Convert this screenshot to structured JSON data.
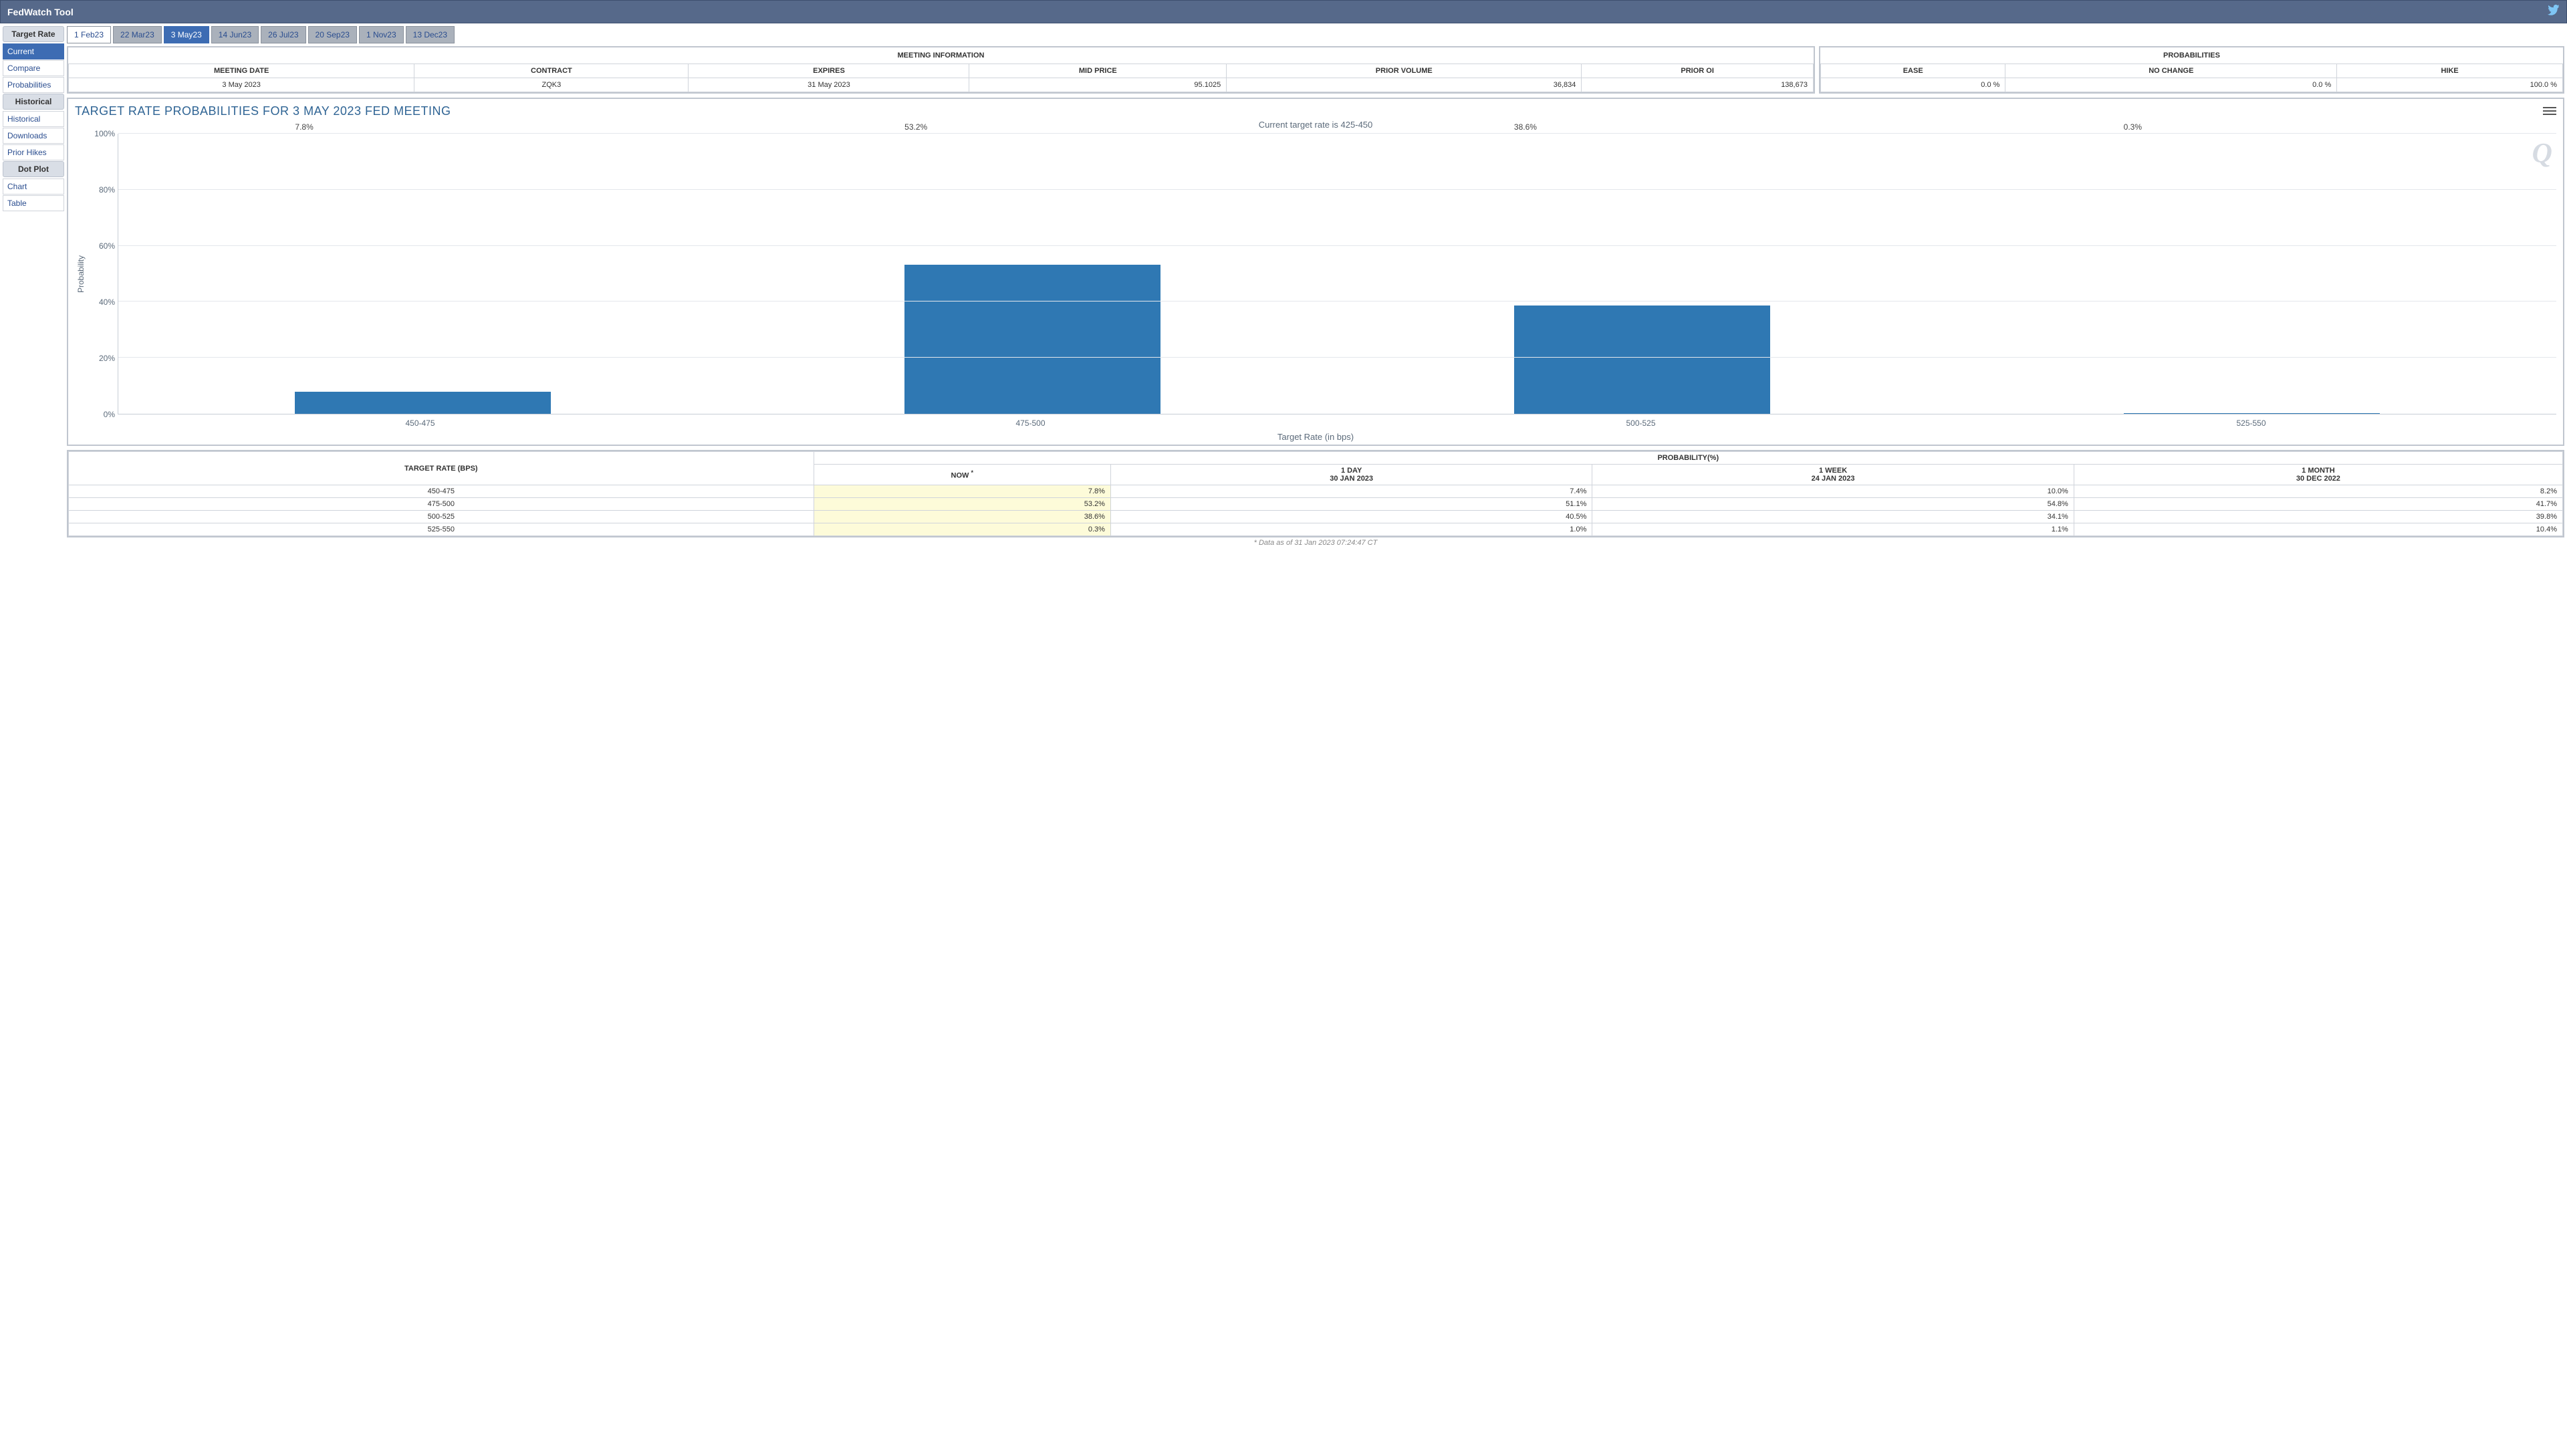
{
  "header": {
    "title": "FedWatch Tool"
  },
  "sidebar": {
    "sections": [
      {
        "title": "Target Rate",
        "items": [
          {
            "label": "Current",
            "active": true
          },
          {
            "label": "Compare",
            "active": false
          },
          {
            "label": "Probabilities",
            "active": false
          }
        ]
      },
      {
        "title": "Historical",
        "items": [
          {
            "label": "Historical",
            "active": false
          },
          {
            "label": "Downloads",
            "active": false
          },
          {
            "label": "Prior Hikes",
            "active": false
          }
        ]
      },
      {
        "title": "Dot Plot",
        "items": [
          {
            "label": "Chart",
            "active": false
          },
          {
            "label": "Table",
            "active": false
          }
        ]
      }
    ]
  },
  "tabs": [
    {
      "label": "1 Feb23",
      "state": "white"
    },
    {
      "label": "22 Mar23",
      "state": "normal"
    },
    {
      "label": "3 May23",
      "state": "active"
    },
    {
      "label": "14 Jun23",
      "state": "normal"
    },
    {
      "label": "26 Jul23",
      "state": "normal"
    },
    {
      "label": "20 Sep23",
      "state": "normal"
    },
    {
      "label": "1 Nov23",
      "state": "normal"
    },
    {
      "label": "13 Dec23",
      "state": "normal"
    }
  ],
  "meeting_info": {
    "title": "MEETING INFORMATION",
    "headers": [
      "MEETING DATE",
      "CONTRACT",
      "EXPIRES",
      "MID PRICE",
      "PRIOR VOLUME",
      "PRIOR OI"
    ],
    "row": [
      "3 May 2023",
      "ZQK3",
      "31 May 2023",
      "95.1025",
      "36,834",
      "138,673"
    ],
    "num_align_from": 3
  },
  "probabilities": {
    "title": "PROBABILITIES",
    "headers": [
      "EASE",
      "NO CHANGE",
      "HIKE"
    ],
    "row": [
      "0.0 %",
      "0.0 %",
      "100.0 %"
    ]
  },
  "chart": {
    "type": "bar",
    "title": "TARGET RATE PROBABILITIES FOR 3 MAY 2023 FED MEETING",
    "subtitle": "Current target rate is 425-450",
    "ylabel": "Probability",
    "xlabel": "Target Rate (in bps)",
    "ymin": 0,
    "ymax": 100,
    "ytick_step": 20,
    "bar_color": "#2f78b3",
    "grid_color": "#e4e7ec",
    "axis_color": "#c7cdd6",
    "text_color": "#5b6a7a",
    "background_color": "#ffffff",
    "watermark": "Q",
    "categories": [
      "450-475",
      "475-500",
      "500-525",
      "525-550"
    ],
    "values": [
      7.8,
      53.2,
      38.6,
      0.3
    ],
    "value_suffix": "%"
  },
  "prob_table": {
    "target_header": "TARGET RATE (BPS)",
    "prob_header": "PROBABILITY(%)",
    "columns": [
      {
        "l1": "NOW",
        "l2": "",
        "star": true,
        "now": true
      },
      {
        "l1": "1 DAY",
        "l2": "30 JAN 2023",
        "star": false,
        "now": false
      },
      {
        "l1": "1 WEEK",
        "l2": "24 JAN 2023",
        "star": false,
        "now": false
      },
      {
        "l1": "1 MONTH",
        "l2": "30 DEC 2022",
        "star": false,
        "now": false
      }
    ],
    "rows": [
      {
        "rate": "450-475",
        "vals": [
          "7.8%",
          "7.4%",
          "10.0%",
          "8.2%"
        ]
      },
      {
        "rate": "475-500",
        "vals": [
          "53.2%",
          "51.1%",
          "54.8%",
          "41.7%"
        ]
      },
      {
        "rate": "500-525",
        "vals": [
          "38.6%",
          "40.5%",
          "34.1%",
          "39.8%"
        ]
      },
      {
        "rate": "525-550",
        "vals": [
          "0.3%",
          "1.0%",
          "1.1%",
          "10.4%"
        ]
      }
    ]
  },
  "footnote": "* Data as of 31 Jan 2023 07:24:47 CT"
}
